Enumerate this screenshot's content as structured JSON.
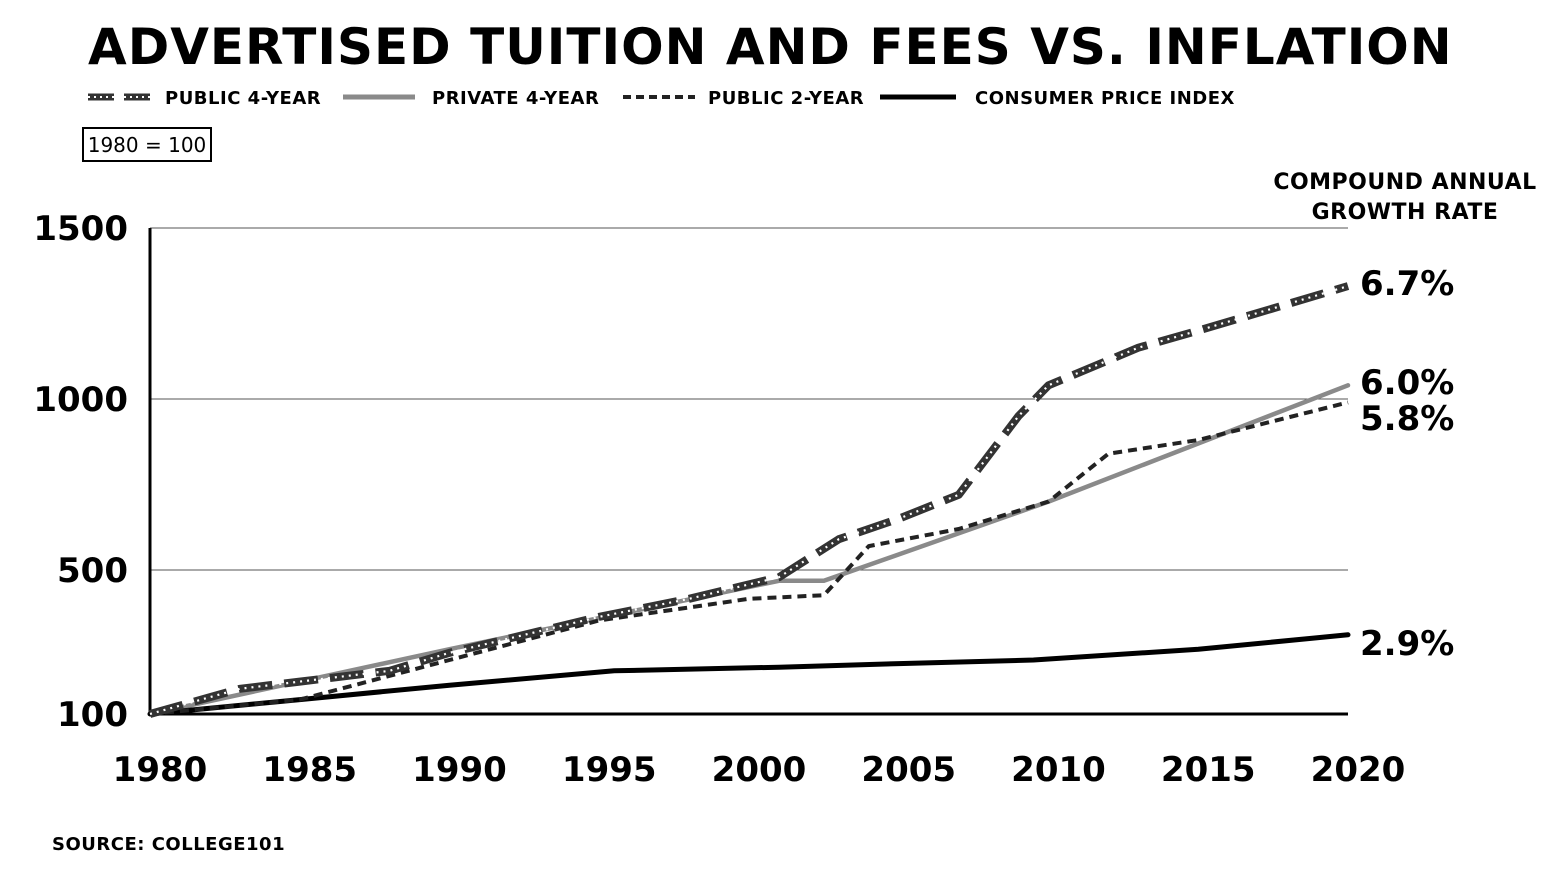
{
  "chart_data": {
    "type": "line",
    "title": "ADVERTISED TUITION AND FEES VS. INFLATION",
    "baseline_note": "1980 = 100",
    "rate_header": [
      "COMPOUND ANNUAL",
      "GROWTH RATE"
    ],
    "source": "SOURCE: COLLEGE101",
    "yticks": [
      100,
      500,
      1000,
      1500
    ],
    "ylim": [
      100,
      1500
    ],
    "xticks": [
      1980,
      1985,
      1990,
      1995,
      2000,
      2005,
      2010,
      2015,
      2020
    ],
    "xlim": [
      1980,
      2020
    ],
    "grid": true,
    "series": [
      {
        "name": "PUBLIC 4-YEAR",
        "cagr": "6.7%",
        "style": "dotted-dashed",
        "color": "#333333",
        "x": [
          1980,
          1983,
          1985,
          1986,
          1988,
          1990,
          1993,
          1995,
          1998,
          2001,
          2003,
          2005,
          2007,
          2009,
          2010,
          2013,
          2015,
          2020
        ],
        "y": [
          100,
          170,
          190,
          200,
          220,
          270,
          330,
          370,
          420,
          480,
          590,
          650,
          720,
          950,
          1040,
          1150,
          1200,
          1330
        ]
      },
      {
        "name": "PRIVATE 4-YEAR",
        "cagr": "6.0%",
        "style": "solid",
        "color": "#8a8a8a",
        "x": [
          1980,
          1990,
          2001,
          2002.5,
          2010,
          2020
        ],
        "y": [
          100,
          280,
          470,
          470,
          700,
          1040
        ]
      },
      {
        "name": "PUBLIC 2-YEAR",
        "cagr": "5.8%",
        "style": "dashed",
        "color": "#222222",
        "x": [
          1980,
          1985,
          1990,
          1995,
          2000,
          2002.5,
          2004,
          2007,
          2010,
          2012,
          2015,
          2020
        ],
        "y": [
          100,
          140,
          250,
          360,
          420,
          430,
          570,
          620,
          700,
          840,
          880,
          990
        ]
      },
      {
        "name": "CONSUMER PRICE INDEX",
        "cagr": "2.9%",
        "style": "solid",
        "color": "#000000",
        "x": [
          1980,
          1985,
          1990,
          1995.5,
          2001,
          2005,
          2009.5,
          2015,
          2020
        ],
        "y": [
          100,
          140,
          180,
          220,
          230,
          240,
          250,
          280,
          320
        ]
      }
    ]
  }
}
